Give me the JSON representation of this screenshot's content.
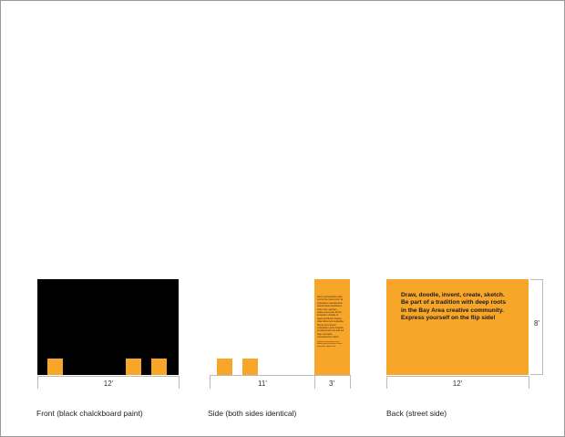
{
  "front": {
    "caption": "Front (black chalckboard paint)",
    "width_label": "12'"
  },
  "side": {
    "caption": "Side (both sides identical)",
    "width_label": "11'",
    "end_width_label": "3'",
    "end_panel_text": "Sed ut perspiciatis unde omnis iste natus error sit voluptatem accusantium doloremque laudantium, totam rem aperiam, eaque ipsa quae ab illo inventore veritatis et quasi architecto beatae vitae dicta sunt explicabo. Nemo enim ipsam voluptatem quia voluptas sit aspernatur aut odit aut fugit, sed quia consequuntur magni dolores eos qui ratione voluptatem sequi nesciunt.",
    "end_panel_footer": "Neque porro quisquam est, qui dolorem ipsum quia dolor sit amet, consectetur, adipisci velit."
  },
  "back": {
    "caption": "Back (street side)",
    "width_label": "12'",
    "height_label": "8'",
    "message_line1": "Draw, doodle, invent, create, sketch.",
    "message_line2": "Be part of a tradition with deep roots",
    "message_line3": "in the Bay Area creative community.",
    "message_line4": "Express yourself on the flip side!"
  },
  "colors": {
    "board_front": "#000000",
    "accent_orange": "#f8a62a",
    "dimension_line": "#bbbbbb"
  }
}
